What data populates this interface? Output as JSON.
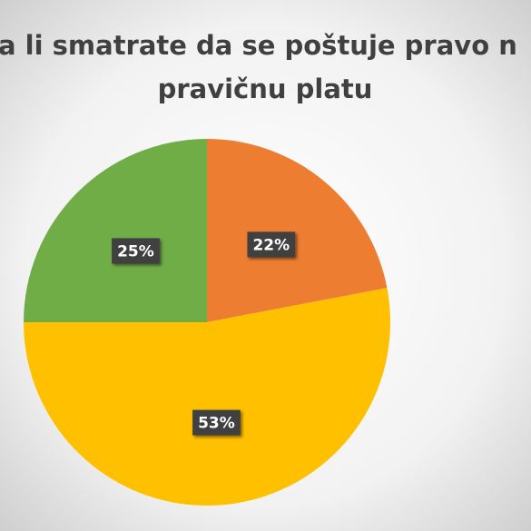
{
  "chart_data": {
    "type": "pie",
    "title_lines": [
      "a li smatrate da se poštuje pravo n",
      "pravičnu platu"
    ],
    "values": [
      22,
      53,
      25
    ],
    "value_labels": [
      "22%",
      "53%",
      "25%"
    ],
    "colors": [
      "#ed7d31",
      "#ffc000",
      "#70ad47"
    ]
  }
}
